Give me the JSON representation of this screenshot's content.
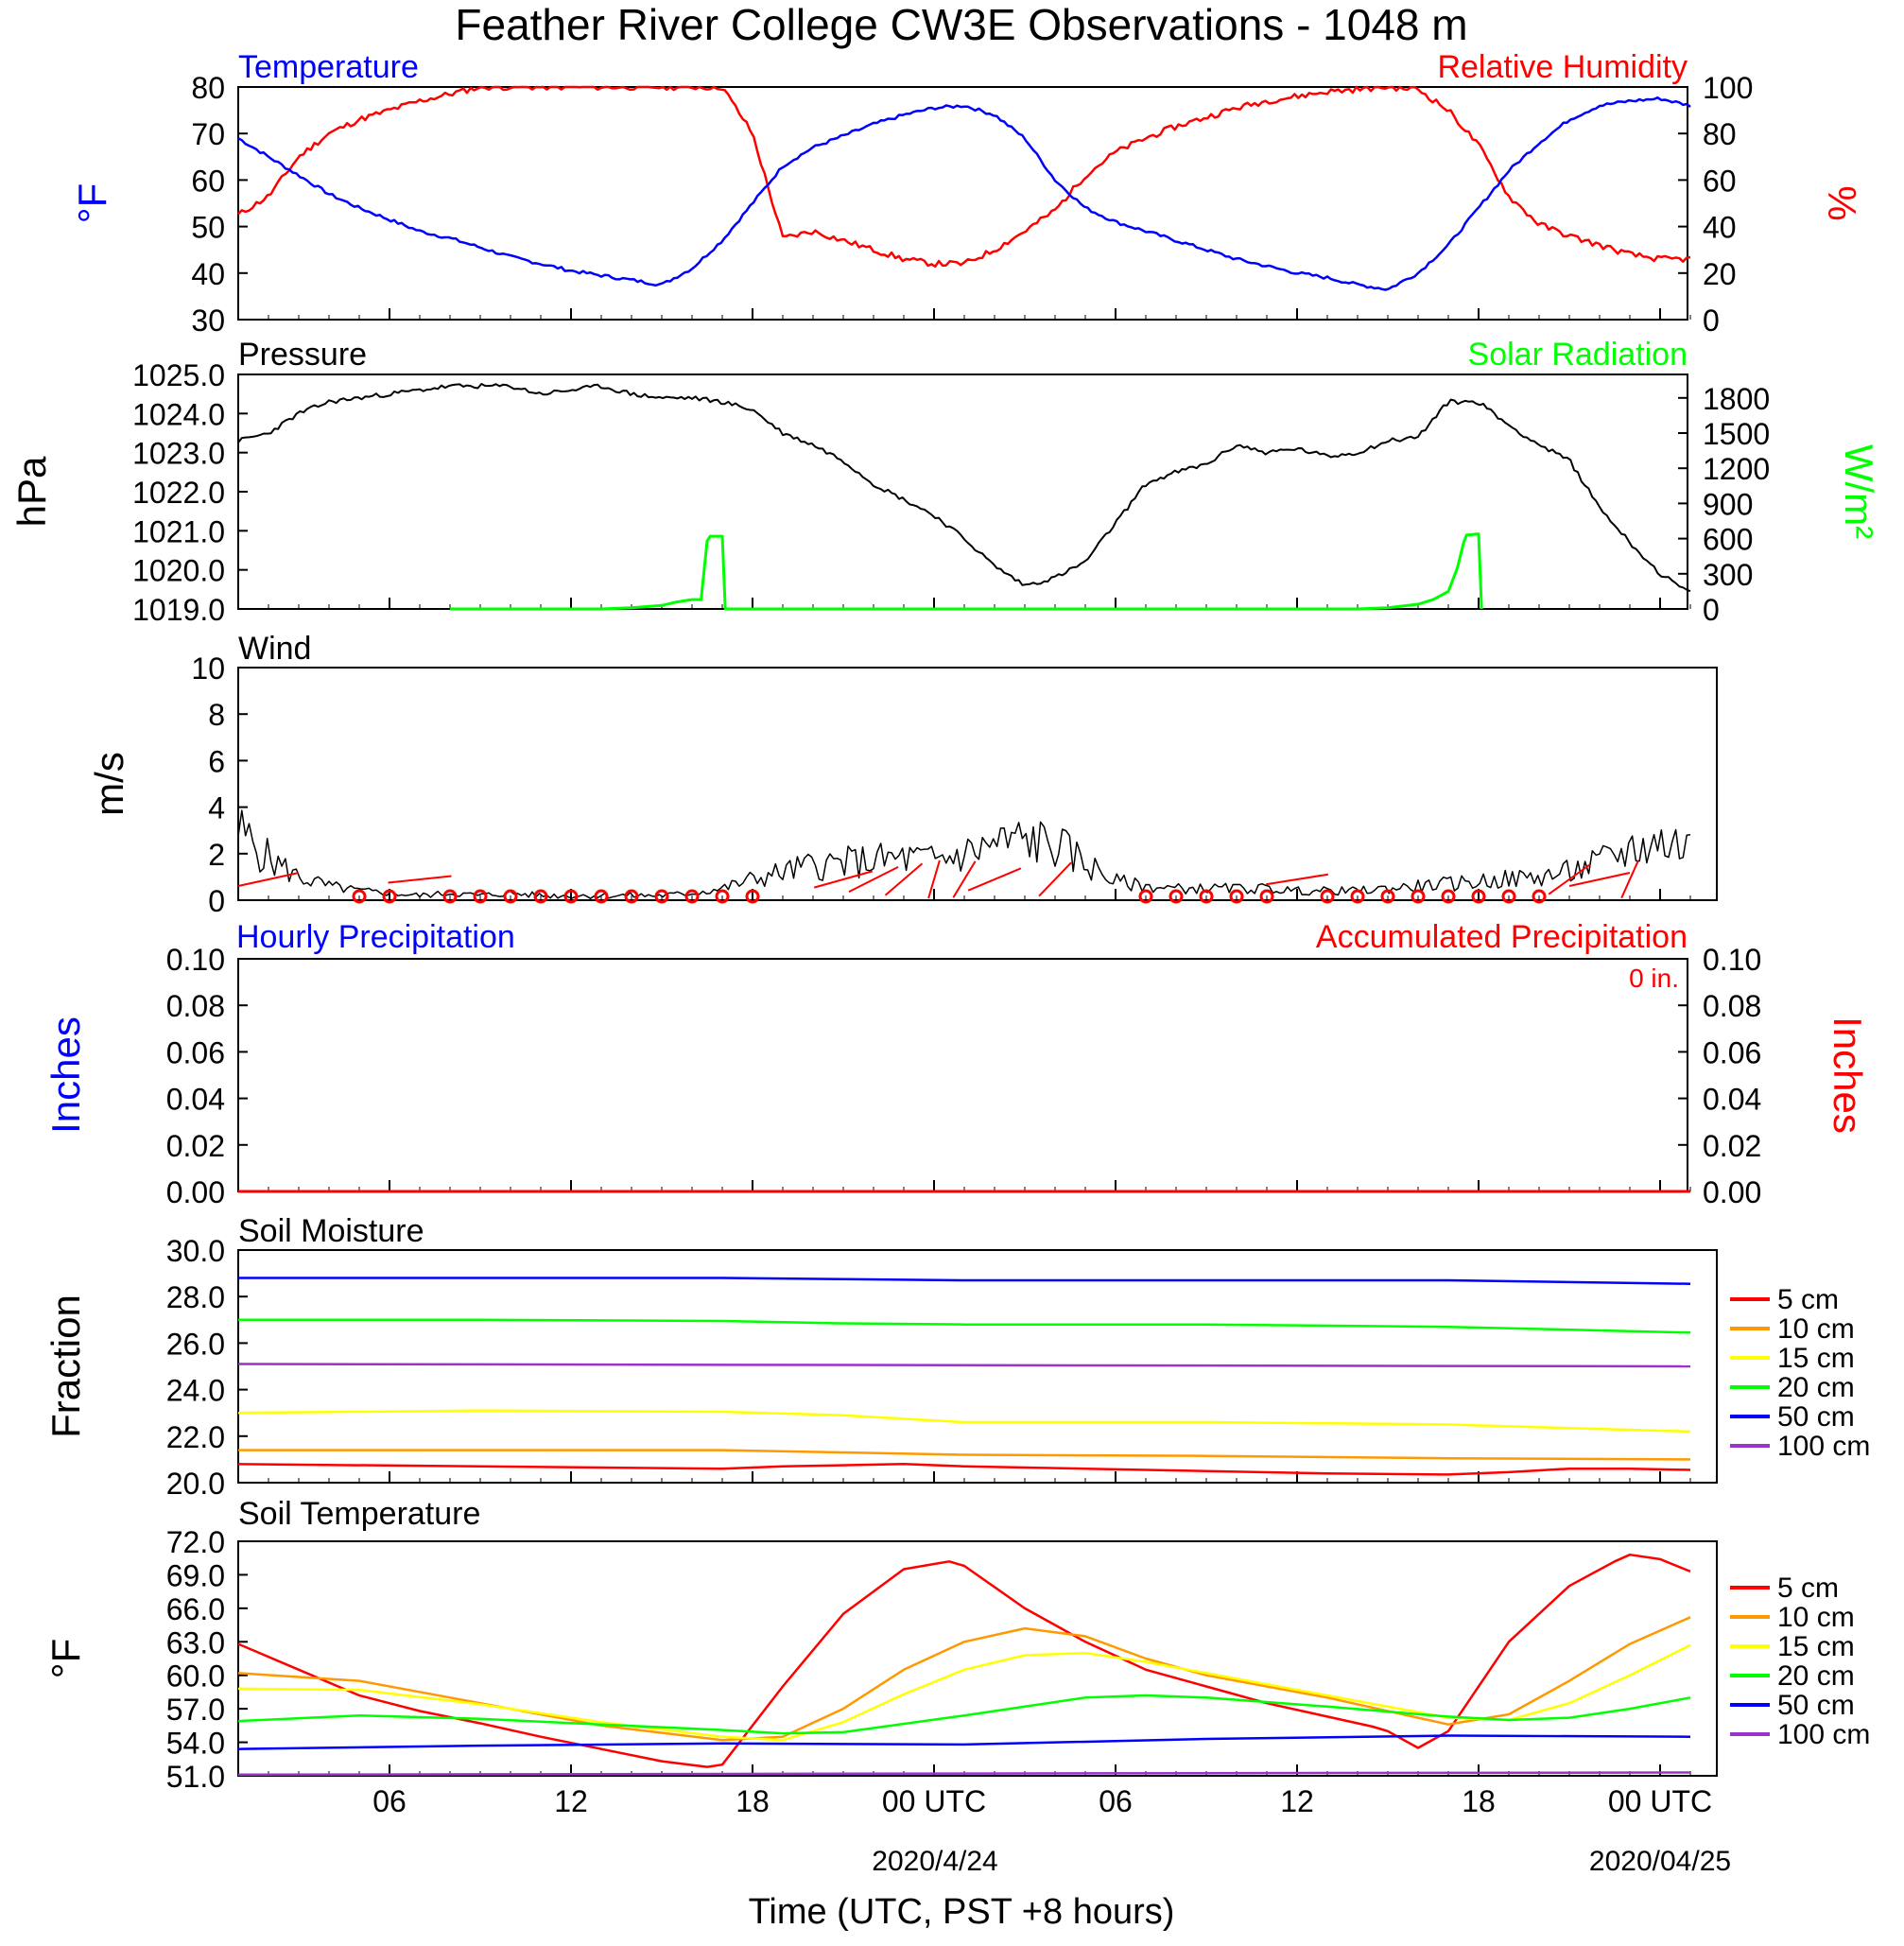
{
  "title": "Feather River College CW3E Observations - 1048 m",
  "colors": {
    "temperature": "#0000ff",
    "humidity": "#ff0000",
    "pressure": "#000000",
    "solar": "#00ff00",
    "wind": "#000000",
    "wind_barb": "#ff0000",
    "hourly_precip": "#0000ff",
    "accum_precip": "#ff0000",
    "depth_5": "#ff0000",
    "depth_10": "#ff9900",
    "depth_15": "#ffff00",
    "depth_20": "#00ff00",
    "depth_50": "#0000ff",
    "depth_100": "#9933cc"
  },
  "panels": {
    "temp_rh": {
      "left_title": "Temperature",
      "right_title": "Relative Humidity",
      "left_unit": "°F",
      "right_unit": "%",
      "left_ticks": [
        "30",
        "40",
        "50",
        "60",
        "70",
        "80"
      ],
      "right_ticks": [
        "0",
        "20",
        "40",
        "60",
        "80",
        "100"
      ]
    },
    "pressure": {
      "left_title": "Pressure",
      "right_title": "Solar Radiation",
      "left_unit": "hPa",
      "right_unit": "W/m²",
      "left_ticks": [
        "1019.0",
        "1020.0",
        "1021.0",
        "1022.0",
        "1023.0",
        "1024.0",
        "1025.0"
      ],
      "right_ticks": [
        "0",
        "300",
        "600",
        "900",
        "1200",
        "1500",
        "1800"
      ]
    },
    "wind": {
      "left_title": "Wind",
      "left_unit": "m/s",
      "left_ticks": [
        "0",
        "2",
        "4",
        "6",
        "8",
        "10"
      ]
    },
    "precip": {
      "left_title": "Hourly Precipitation",
      "right_title": "Accumulated Precipitation",
      "total_label": "0 in.",
      "left_unit": "Inches",
      "right_unit": "Inches",
      "left_ticks": [
        "0.00",
        "0.02",
        "0.04",
        "0.06",
        "0.08",
        "0.10"
      ],
      "right_ticks": [
        "0.00",
        "0.02",
        "0.04",
        "0.06",
        "0.08",
        "0.10"
      ]
    },
    "soil_moisture": {
      "left_title": "Soil Moisture",
      "left_unit": "Fraction",
      "left_ticks": [
        "20.0",
        "22.0",
        "24.0",
        "26.0",
        "28.0",
        "30.0"
      ],
      "legend": [
        "5 cm",
        "10 cm",
        "15 cm",
        "20 cm",
        "50 cm",
        "100 cm"
      ]
    },
    "soil_temp": {
      "left_title": "Soil Temperature",
      "left_unit": "°F",
      "left_ticks": [
        "51.0",
        "54.0",
        "57.0",
        "60.0",
        "63.0",
        "66.0",
        "69.0",
        "72.0"
      ],
      "legend": [
        "5 cm",
        "10 cm",
        "15 cm",
        "20 cm",
        "50 cm",
        "100 cm"
      ]
    }
  },
  "x_axis": {
    "ticks": [
      "06",
      "12",
      "18",
      "00 UTC",
      "06",
      "12",
      "18",
      "00 UTC"
    ],
    "dates": [
      "2020/4/24",
      "2020/04/25"
    ],
    "label": "Time (UTC, PST +8 hours)"
  },
  "chart_data": [
    {
      "type": "line",
      "title": "Temperature / Relative Humidity",
      "x_unit": "hours from 2020-04-23 01 UTC",
      "xlim": [
        0,
        48
      ],
      "series": [
        {
          "name": "Temperature",
          "axis": "left",
          "ylim": [
            30,
            80
          ],
          "x": [
            0,
            1,
            2,
            3,
            4,
            5,
            6,
            7,
            8,
            9,
            10,
            11,
            12,
            13,
            14,
            15,
            16,
            17,
            18,
            19,
            20,
            21,
            22,
            23,
            24,
            25,
            26,
            27,
            28,
            29,
            30,
            31,
            32,
            33,
            34,
            35,
            36,
            37,
            38,
            39,
            40,
            41,
            42,
            43,
            44,
            45,
            46,
            47,
            48
          ],
          "y": [
            69,
            65,
            61,
            57,
            54,
            51.5,
            49,
            47.5,
            45.5,
            43.5,
            42,
            40.5,
            39.5,
            38.5,
            37.5,
            41,
            47,
            55,
            63,
            67,
            69.5,
            72,
            74,
            75.5,
            76,
            74,
            69,
            60,
            54,
            51,
            49,
            47,
            45,
            43,
            41.5,
            40,
            39,
            37.5,
            36.5,
            40,
            46,
            54,
            62,
            68,
            73,
            76,
            77,
            77.5,
            76
          ]
        },
        {
          "name": "Relative Humidity",
          "axis": "right",
          "ylim": [
            0,
            100
          ],
          "x": [
            0,
            1,
            2,
            3,
            4,
            5,
            6,
            7,
            8,
            9,
            10,
            11,
            12,
            13,
            14,
            15,
            16,
            17,
            18,
            19,
            20,
            21,
            22,
            23,
            24,
            25,
            26,
            27,
            28,
            29,
            30,
            31,
            32,
            33,
            34,
            35,
            36,
            37,
            38,
            39,
            40,
            41,
            42,
            43,
            44,
            45,
            46,
            47,
            48
          ],
          "y": [
            45,
            53,
            70,
            80,
            86,
            90,
            94,
            97,
            100,
            100,
            100,
            100,
            100,
            100,
            100,
            100,
            100,
            80,
            35,
            38,
            34,
            30,
            26,
            24,
            24,
            30,
            38,
            47,
            62,
            72,
            78,
            83,
            87,
            91,
            94,
            96,
            98,
            99,
            100,
            99,
            90,
            75,
            53,
            41,
            36,
            32,
            28,
            26,
            26
          ]
        }
      ]
    },
    {
      "type": "line",
      "title": "Pressure / Solar Radiation",
      "xlim": [
        0,
        48
      ],
      "series": [
        {
          "name": "Pressure",
          "axis": "left",
          "ylim": [
            1019,
            1025
          ],
          "x": [
            0,
            1,
            2,
            3,
            4,
            5,
            6,
            7,
            8,
            9,
            10,
            11,
            12,
            13,
            14,
            15,
            16,
            17,
            18,
            19,
            20,
            21,
            22,
            23,
            24,
            25,
            26,
            27,
            28,
            29,
            30,
            31,
            32,
            33,
            34,
            35,
            36,
            37,
            38,
            39,
            40,
            41,
            42,
            43,
            44,
            45,
            46,
            47,
            48
          ],
          "y": [
            1023.3,
            1023.5,
            1024.0,
            1024.3,
            1024.4,
            1024.5,
            1024.6,
            1024.7,
            1024.7,
            1024.7,
            1024.5,
            1024.6,
            1024.7,
            1024.5,
            1024.4,
            1024.4,
            1024.3,
            1024.1,
            1023.5,
            1023.2,
            1022.8,
            1022.2,
            1021.8,
            1021.4,
            1020.8,
            1020.1,
            1019.6,
            1019.8,
            1020.2,
            1021.2,
            1022.2,
            1022.5,
            1022.7,
            1023.2,
            1023.0,
            1023.1,
            1022.9,
            1023.0,
            1023.3,
            1023.4,
            1024.3,
            1024.3,
            1023.7,
            1023.2,
            1022.8,
            1021.6,
            1020.7,
            1019.9,
            1019.4
          ]
        },
        {
          "name": "Solar Radiation",
          "axis": "right",
          "ylim": [
            0,
            2000
          ],
          "x": [
            7,
            12,
            13,
            14,
            14.5,
            15,
            15.3,
            15.5,
            15.6,
            16,
            16.1,
            31,
            37,
            38,
            39,
            39.5,
            40,
            40.3,
            40.5,
            40.6,
            41,
            41.1
          ],
          "y": [
            0,
            0,
            10,
            30,
            60,
            80,
            80,
            580,
            620,
            620,
            0,
            0,
            0,
            10,
            40,
            80,
            150,
            350,
            560,
            630,
            640,
            0
          ]
        }
      ]
    },
    {
      "type": "line",
      "title": "Wind",
      "xlim": [
        0,
        48
      ],
      "ylim": [
        0,
        10
      ],
      "series": [
        {
          "name": "Wind speed",
          "x": [
            0,
            1,
            2,
            3,
            4,
            5,
            6,
            7,
            8,
            9,
            10,
            11,
            12,
            13,
            14,
            15,
            16,
            17,
            18,
            19,
            20,
            21,
            22,
            23,
            24,
            25,
            26,
            27,
            28,
            29,
            30,
            31,
            32,
            33,
            34,
            35,
            36,
            37,
            38,
            39,
            40,
            41,
            42,
            43,
            44,
            45,
            46,
            47,
            48
          ],
          "y": [
            3.0,
            1.8,
            1.0,
            0.6,
            0.4,
            0.3,
            0.2,
            0.3,
            0.2,
            0.3,
            0.2,
            0.2,
            0.2,
            0.2,
            0.2,
            0.3,
            0.5,
            0.9,
            1.2,
            1.5,
            1.6,
            1.7,
            1.8,
            1.7,
            2.0,
            2.4,
            2.6,
            2.4,
            1.6,
            0.8,
            0.6,
            0.5,
            0.5,
            0.5,
            0.5,
            0.4,
            0.4,
            0.4,
            0.5,
            0.6,
            0.7,
            0.8,
            0.9,
            1.0,
            1.2,
            1.6,
            2.2,
            2.5,
            2.3
          ]
        }
      ]
    },
    {
      "type": "line",
      "title": "Precipitation",
      "xlim": [
        0,
        48
      ],
      "series": [
        {
          "name": "Hourly Precipitation",
          "axis": "left",
          "ylim": [
            0,
            0.1
          ],
          "x": [
            0,
            48
          ],
          "y": [
            0,
            0
          ]
        },
        {
          "name": "Accumulated Precipitation",
          "axis": "right",
          "ylim": [
            0,
            0.1
          ],
          "x": [
            0,
            48
          ],
          "y": [
            0,
            0
          ]
        }
      ]
    },
    {
      "type": "line",
      "title": "Soil Moisture",
      "xlim": [
        0,
        48
      ],
      "ylim": [
        20,
        30
      ],
      "series": [
        {
          "name": "5 cm",
          "x": [
            0,
            8,
            16,
            18,
            22,
            24,
            28,
            32,
            36,
            40,
            42,
            44,
            46,
            48
          ],
          "y": [
            20.8,
            20.7,
            20.6,
            20.7,
            20.8,
            20.7,
            20.6,
            20.5,
            20.4,
            20.35,
            20.45,
            20.6,
            20.6,
            20.55
          ]
        },
        {
          "name": "10 cm",
          "x": [
            0,
            8,
            16,
            20,
            24,
            32,
            40,
            48
          ],
          "y": [
            21.4,
            21.4,
            21.4,
            21.3,
            21.2,
            21.15,
            21.05,
            21.0
          ]
        },
        {
          "name": "15 cm",
          "x": [
            0,
            8,
            16,
            20,
            24,
            32,
            40,
            48
          ],
          "y": [
            23.0,
            23.1,
            23.05,
            22.9,
            22.6,
            22.6,
            22.5,
            22.2
          ]
        },
        {
          "name": "20 cm",
          "x": [
            0,
            8,
            16,
            20,
            24,
            32,
            40,
            48
          ],
          "y": [
            27.0,
            27.0,
            26.95,
            26.85,
            26.8,
            26.8,
            26.7,
            26.45
          ]
        },
        {
          "name": "50 cm",
          "x": [
            0,
            8,
            16,
            20,
            24,
            32,
            40,
            48
          ],
          "y": [
            28.8,
            28.8,
            28.8,
            28.75,
            28.7,
            28.7,
            28.7,
            28.55
          ]
        },
        {
          "name": "100 cm",
          "x": [
            0,
            48
          ],
          "y": [
            25.1,
            25.0
          ]
        }
      ]
    },
    {
      "type": "line",
      "title": "Soil Temperature",
      "xlim": [
        0,
        48
      ],
      "ylim": [
        51,
        72
      ],
      "series": [
        {
          "name": "5 cm",
          "x": [
            0,
            2,
            4,
            6,
            8,
            10,
            12,
            14,
            15.5,
            16,
            18,
            20,
            22,
            23.5,
            24,
            26,
            28,
            30,
            32,
            34,
            36,
            37.5,
            38,
            39,
            40,
            42,
            44,
            45.5,
            46,
            47,
            48
          ],
          "y": [
            62.8,
            60.5,
            58.2,
            56.8,
            55.7,
            54.5,
            53.4,
            52.3,
            51.8,
            52.0,
            59.0,
            65.5,
            69.5,
            70.2,
            69.8,
            66.0,
            63.0,
            60.5,
            59.0,
            57.5,
            56.3,
            55.4,
            55.0,
            53.5,
            55.0,
            63.0,
            68.0,
            70.2,
            70.8,
            70.4,
            69.3
          ]
        },
        {
          "name": "10 cm",
          "x": [
            0,
            4,
            8,
            12,
            16,
            18,
            20,
            22,
            24,
            26,
            28,
            30,
            32,
            36,
            39,
            40,
            42,
            44,
            46,
            48
          ],
          "y": [
            60.2,
            59.5,
            57.5,
            55.5,
            54.2,
            54.5,
            57.0,
            60.5,
            63.0,
            64.2,
            63.5,
            61.5,
            60.0,
            58.0,
            56.2,
            55.6,
            56.5,
            59.5,
            62.8,
            65.2
          ]
        },
        {
          "name": "15 cm",
          "x": [
            0,
            4,
            8,
            12,
            16,
            18,
            20,
            22,
            24,
            26,
            28,
            30,
            32,
            36,
            40,
            42,
            44,
            46,
            48
          ],
          "y": [
            58.8,
            58.7,
            57.4,
            55.8,
            54.5,
            54.2,
            55.8,
            58.3,
            60.5,
            61.8,
            62.0,
            61.2,
            60.2,
            58.2,
            56.2,
            56.0,
            57.5,
            60.0,
            62.7
          ]
        },
        {
          "name": "20 cm",
          "x": [
            0,
            4,
            8,
            12,
            16,
            18,
            20,
            24,
            28,
            30,
            32,
            36,
            40,
            42,
            44,
            46,
            48
          ],
          "y": [
            55.9,
            56.4,
            56.1,
            55.6,
            55.1,
            54.8,
            54.9,
            56.4,
            58.0,
            58.2,
            58.0,
            57.2,
            56.3,
            56.0,
            56.2,
            57.0,
            58.0
          ]
        },
        {
          "name": "50 cm",
          "x": [
            0,
            8,
            16,
            24,
            32,
            40,
            48
          ],
          "y": [
            53.4,
            53.7,
            53.9,
            53.8,
            54.3,
            54.6,
            54.5
          ]
        },
        {
          "name": "100 cm",
          "x": [
            0,
            24,
            48
          ],
          "y": [
            51.1,
            51.2,
            51.3
          ]
        }
      ]
    }
  ]
}
